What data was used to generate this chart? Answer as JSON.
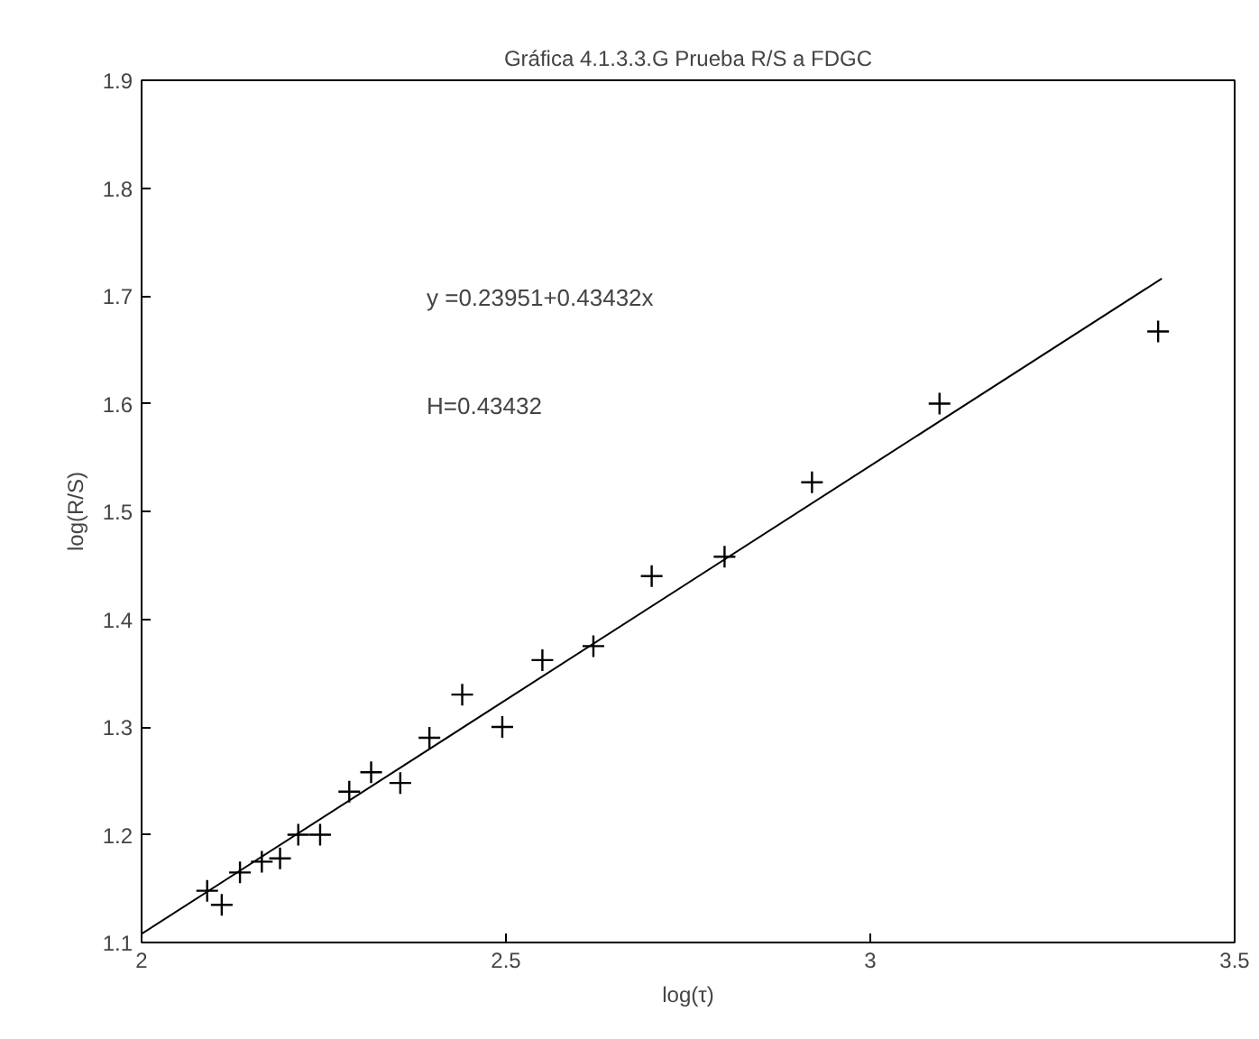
{
  "chart_data": {
    "type": "scatter",
    "title": "Gráfica 4.1.3.3.G Prueba R/S a FDGC",
    "xlabel": "log(τ)",
    "ylabel": "log(R/S)",
    "xlim": [
      2,
      3.5
    ],
    "xticks": [
      2,
      2.5,
      3,
      3.5
    ],
    "ylim": [
      1.1,
      1.9
    ],
    "yticks": [
      1.1,
      1.2,
      1.3,
      1.4,
      1.5,
      1.6,
      1.7,
      1.8,
      1.9
    ],
    "grid": false,
    "annotations": [
      "y =0.23951+0.43432x",
      "H=0.43432"
    ],
    "series": [
      {
        "color": "#000000",
        "marker": "cross",
        "x": [
          2.09,
          2.11,
          2.135,
          2.165,
          2.19,
          2.215,
          2.245,
          2.285,
          2.315,
          2.355,
          2.395,
          2.44,
          2.495,
          2.55,
          2.62,
          2.7,
          2.8,
          2.92,
          3.095,
          3.395
        ],
        "values": [
          1.148,
          1.135,
          1.165,
          1.175,
          1.178,
          1.2,
          1.2,
          1.24,
          1.258,
          1.248,
          1.29,
          1.33,
          1.3,
          1.362,
          1.375,
          1.44,
          1.458,
          1.527,
          1.6,
          1.667
        ]
      },
      {
        "type": "line",
        "color": "#000000",
        "line_style": "solid",
        "x": [
          2,
          3.4
        ],
        "values": [
          1.108,
          1.716
        ]
      }
    ]
  }
}
